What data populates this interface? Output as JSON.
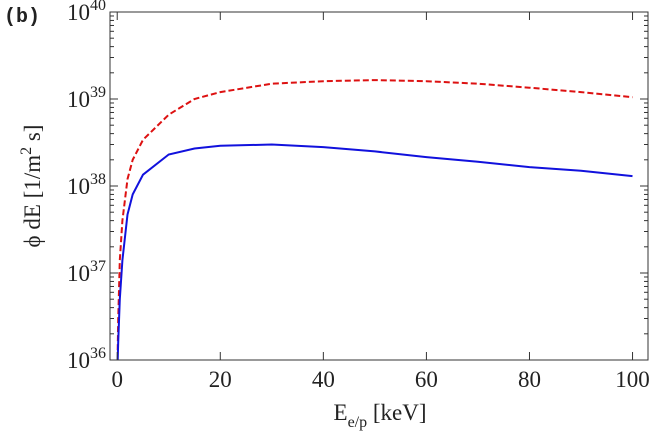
{
  "chart_data": {
    "type": "line",
    "panel_label": "(b)",
    "x_label": [
      "E",
      "e/p",
      " [keV]"
    ],
    "y_label": [
      "ϕ dE [1/m",
      "2",
      " s]"
    ],
    "x": [
      0.1,
      0.2,
      0.5,
      1,
      2,
      3,
      5,
      10,
      15,
      20,
      30,
      40,
      50,
      60,
      70,
      80,
      90,
      100
    ],
    "series": [
      {
        "color": "#dd1111",
        "dashed": true,
        "values": [
          1.3e+36,
          2.9e+36,
          1.4e+37,
          4e+37,
          1.2e+38,
          2e+38,
          3.4e+38,
          6.6e+38,
          1e+39,
          1.2e+39,
          1.5e+39,
          1.6e+39,
          1.65e+39,
          1.6e+39,
          1.5e+39,
          1.35e+39,
          1.2e+39,
          1.05e+39
        ]
      },
      {
        "color": "#1111dd",
        "dashed": false,
        "values": [
          1e+36,
          1.6e+36,
          5e+36,
          1.4e+37,
          4.7e+37,
          8e+37,
          1.35e+38,
          2.3e+38,
          2.7e+38,
          2.9e+38,
          3e+38,
          2.8e+38,
          2.5e+38,
          2.15e+38,
          1.9e+38,
          1.65e+38,
          1.5e+38,
          1.3e+38
        ]
      }
    ],
    "xlim": [
      -1.4,
      103
    ],
    "xticks": [
      0,
      20,
      40,
      60,
      80,
      100
    ],
    "ylim": [
      1e+36,
      1e+40
    ],
    "ylog": true,
    "yticks": [
      {
        "value": 1e+36,
        "label": "10",
        "sup": "36"
      },
      {
        "value": 1e+37,
        "label": "10",
        "sup": "37"
      },
      {
        "value": 1e+38,
        "label": "10",
        "sup": "38"
      },
      {
        "value": 1e+39,
        "label": "10",
        "sup": "39"
      },
      {
        "value": 1e+40,
        "label": "10",
        "sup": "40"
      }
    ]
  }
}
